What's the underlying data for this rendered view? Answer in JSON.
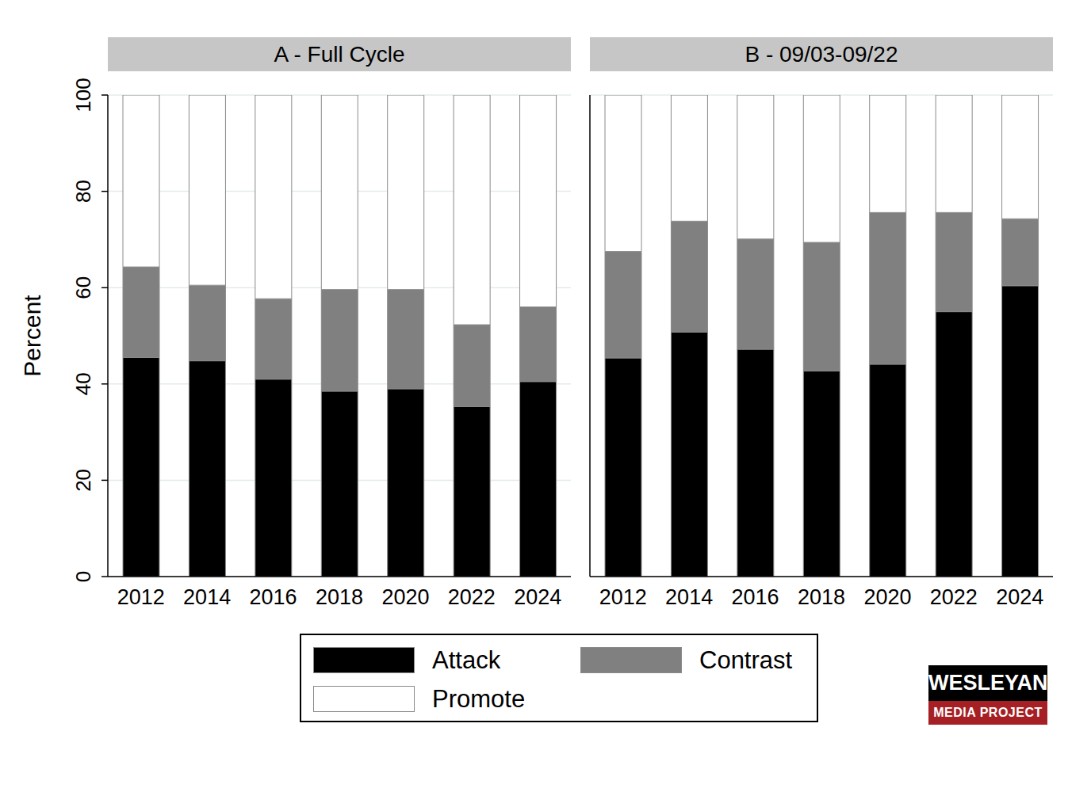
{
  "chart_data": [
    {
      "type": "bar",
      "title": "A - Full Cycle",
      "y_label": "Percent",
      "categories": [
        "2012",
        "2014",
        "2016",
        "2018",
        "2020",
        "2022",
        "2024"
      ],
      "series": [
        {
          "name": "Attack",
          "color": "#000000",
          "values": [
            45.5,
            44.8,
            41.0,
            38.5,
            39.0,
            35.3,
            40.5
          ]
        },
        {
          "name": "Contrast",
          "color": "#808080",
          "values": [
            18.8,
            15.7,
            16.7,
            21.1,
            20.6,
            17.0,
            15.5
          ]
        },
        {
          "name": "Promote",
          "color": "#ffffff",
          "values": [
            35.7,
            39.5,
            42.3,
            40.4,
            40.4,
            47.7,
            44.0
          ]
        }
      ],
      "ylim": [
        0,
        100
      ],
      "yticks": [
        0,
        20,
        40,
        60,
        80,
        100
      ],
      "grid": true,
      "stacked": true,
      "legend": "bottom"
    },
    {
      "type": "bar",
      "title": "B - 09/03-09/22",
      "categories": [
        "2012",
        "2014",
        "2016",
        "2018",
        "2020",
        "2022",
        "2024"
      ],
      "series": [
        {
          "name": "Attack",
          "color": "#000000",
          "values": [
            45.4,
            50.8,
            47.2,
            42.7,
            44.1,
            55.0,
            60.4
          ]
        },
        {
          "name": "Contrast",
          "color": "#808080",
          "values": [
            22.1,
            23.0,
            22.9,
            26.7,
            31.5,
            20.6,
            13.9
          ]
        },
        {
          "name": "Promote",
          "color": "#ffffff",
          "values": [
            32.5,
            26.2,
            29.9,
            30.6,
            24.4,
            24.4,
            25.7
          ]
        }
      ],
      "ylim": [
        0,
        100
      ],
      "yticks": [
        0,
        20,
        40,
        60,
        80,
        100
      ],
      "grid": true,
      "stacked": true,
      "tick_labels": "x"
    }
  ],
  "logo": {
    "title": "WESLEYAN",
    "subtitle": "MEDIA PROJECT"
  }
}
